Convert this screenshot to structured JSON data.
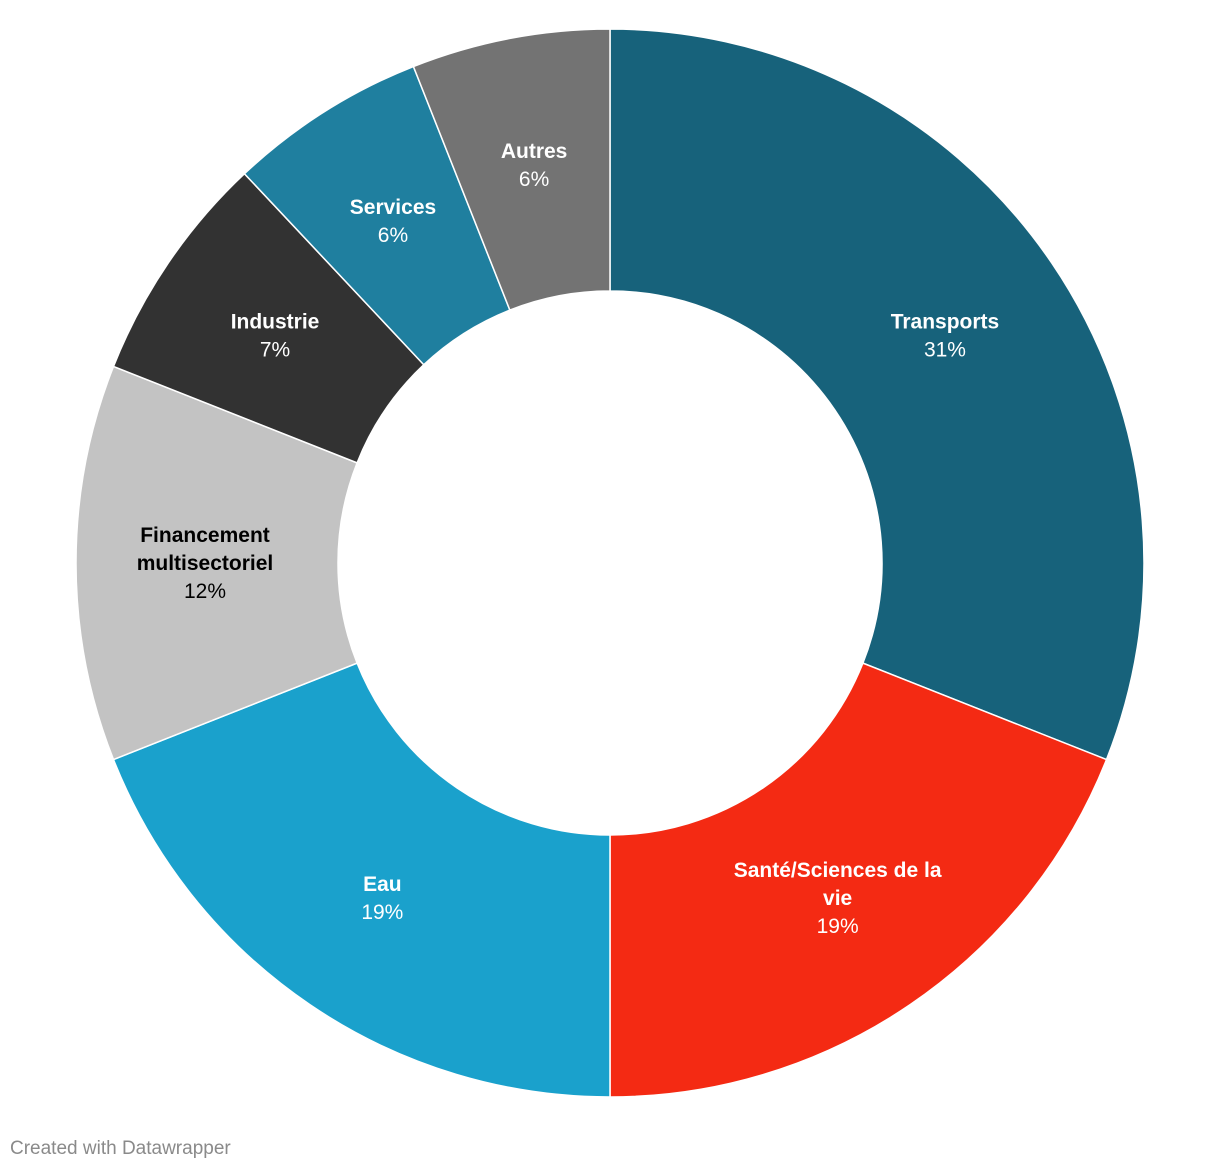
{
  "chart_data": {
    "type": "pie",
    "variant": "donut",
    "slices": [
      {
        "label": "Transports",
        "value": 31,
        "value_label": "31%",
        "color": "#17627b",
        "text_color": "#ffffff"
      },
      {
        "label": "Santé/Sciences de la vie",
        "value": 19,
        "value_label": "19%",
        "color": "#f42a13",
        "text_color": "#ffffff"
      },
      {
        "label": "Eau",
        "value": 19,
        "value_label": "19%",
        "color": "#1aa1cc",
        "text_color": "#ffffff"
      },
      {
        "label": "Financement multisectoriel",
        "value": 12,
        "value_label": "12%",
        "color": "#c3c3c3",
        "text_color": "#000000"
      },
      {
        "label": "Industrie",
        "value": 7,
        "value_label": "7%",
        "color": "#323232",
        "text_color": "#ffffff"
      },
      {
        "label": "Services",
        "value": 6,
        "value_label": "6%",
        "color": "#1f7f9f",
        "text_color": "#ffffff"
      },
      {
        "label": "Autres",
        "value": 6,
        "value_label": "6%",
        "color": "#737373",
        "text_color": "#ffffff"
      }
    ]
  },
  "footer": {
    "credit": "Created with Datawrapper"
  }
}
